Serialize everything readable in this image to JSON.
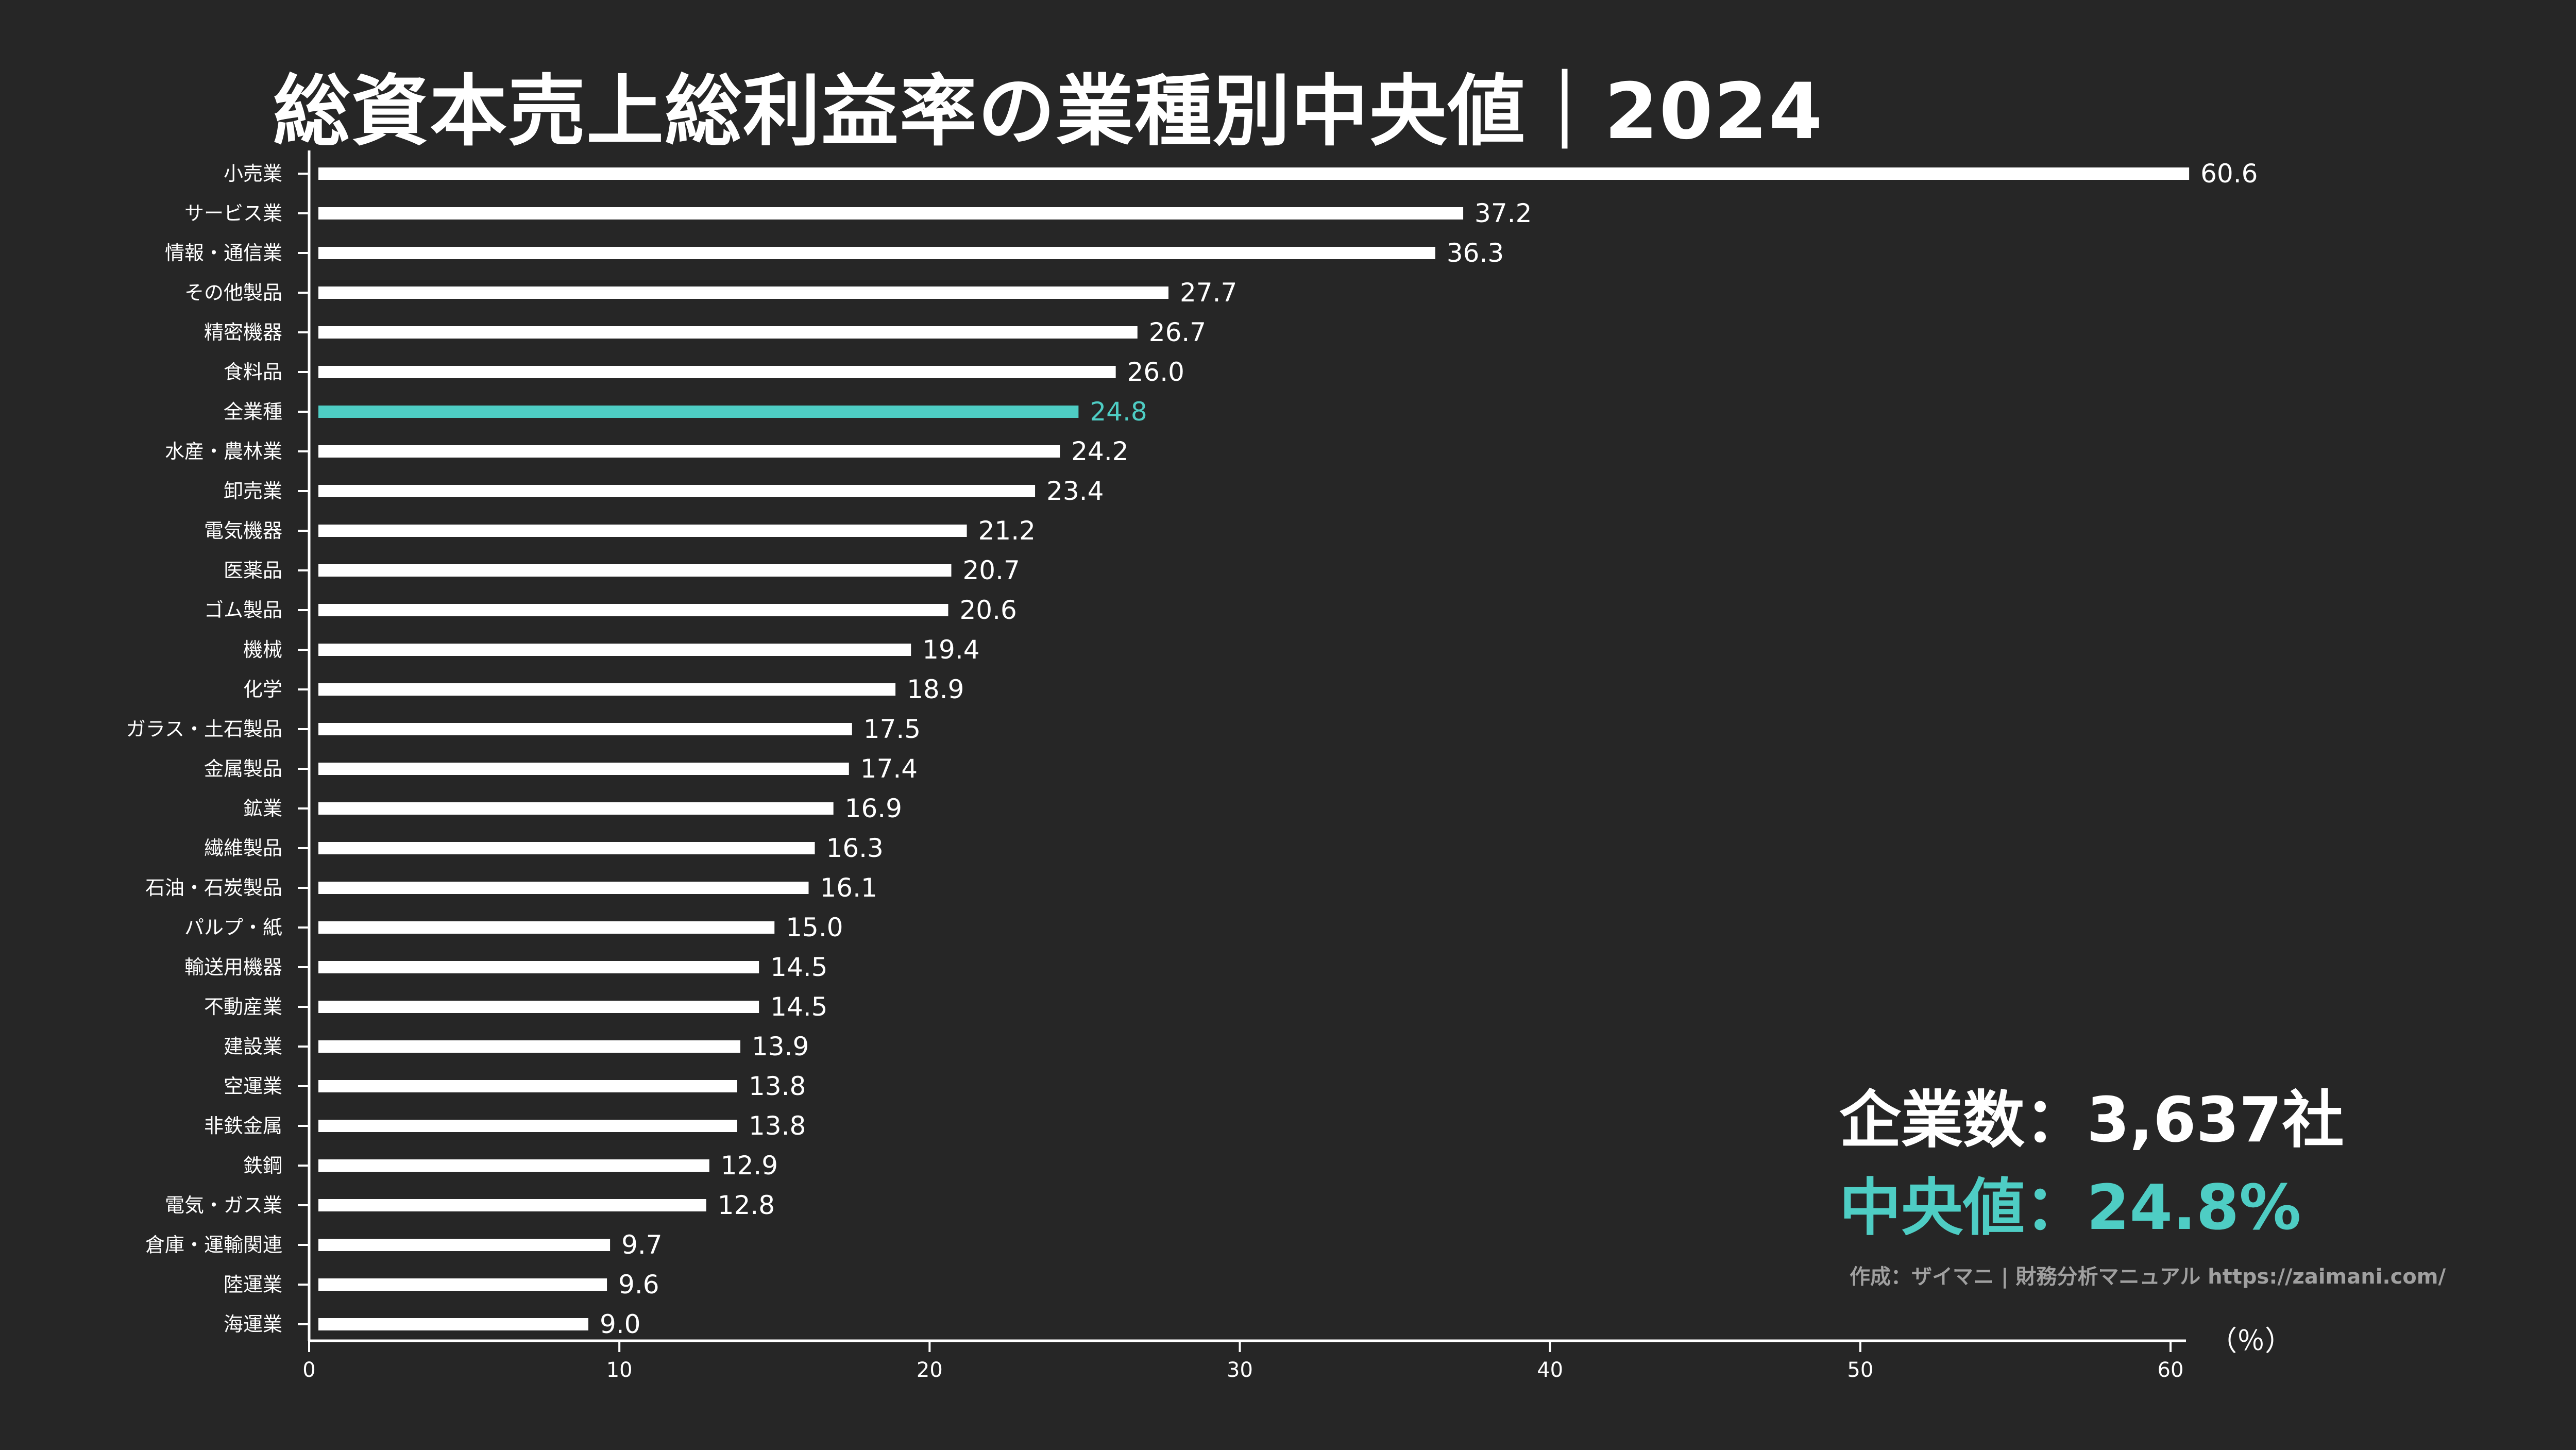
{
  "title": "総資本売上総利益率の業種別中央値｜2024",
  "stats": {
    "count_text": "企業数：3,637社",
    "median_text": "中央値：24.8%"
  },
  "credit": "作成：ザイマニ | 財務分析マニュアル https://zaimani.com/",
  "colors": {
    "bar": "#ffffff",
    "highlight": "#4ecdc4",
    "background": "#262626"
  },
  "chart_data": {
    "type": "bar",
    "orientation": "horizontal",
    "categories": [
      "小売業",
      "サービス業",
      "情報・通信業",
      "その他製品",
      "精密機器",
      "食料品",
      "全業種",
      "水産・農林業",
      "卸売業",
      "電気機器",
      "医薬品",
      "ゴム製品",
      "機械",
      "化学",
      "ガラス・土石製品",
      "金属製品",
      "鉱業",
      "繊維製品",
      "石油・石炭製品",
      "パルプ・紙",
      "輸送用機器",
      "不動産業",
      "建設業",
      "空運業",
      "非鉄金属",
      "鉄鋼",
      "電気・ガス業",
      "倉庫・運輸関連",
      "陸運業",
      "海運業"
    ],
    "values": [
      60.6,
      37.2,
      36.3,
      27.7,
      26.7,
      26.0,
      24.8,
      24.2,
      23.4,
      21.2,
      20.7,
      20.6,
      19.4,
      18.9,
      17.5,
      17.4,
      16.9,
      16.3,
      16.1,
      15.0,
      14.5,
      14.5,
      13.9,
      13.8,
      13.8,
      12.9,
      12.8,
      9.7,
      9.6,
      9.0
    ],
    "value_labels": [
      "60.6",
      "37.2",
      "36.3",
      "27.7",
      "26.7",
      "26.0",
      "24.8",
      "24.2",
      "23.4",
      "21.2",
      "20.7",
      "20.6",
      "19.4",
      "18.9",
      "17.5",
      "17.4",
      "16.9",
      "16.3",
      "16.1",
      "15.0",
      "14.5",
      "14.5",
      "13.9",
      "13.8",
      "13.8",
      "12.9",
      "12.8",
      "9.7",
      "9.6",
      "9.0"
    ],
    "highlight_category": "全業種",
    "xlim": [
      0,
      60
    ],
    "x_ticks": [
      "0",
      "10",
      "20",
      "30",
      "40",
      "50",
      "60"
    ],
    "x_unit": "（％）",
    "grid": false
  }
}
